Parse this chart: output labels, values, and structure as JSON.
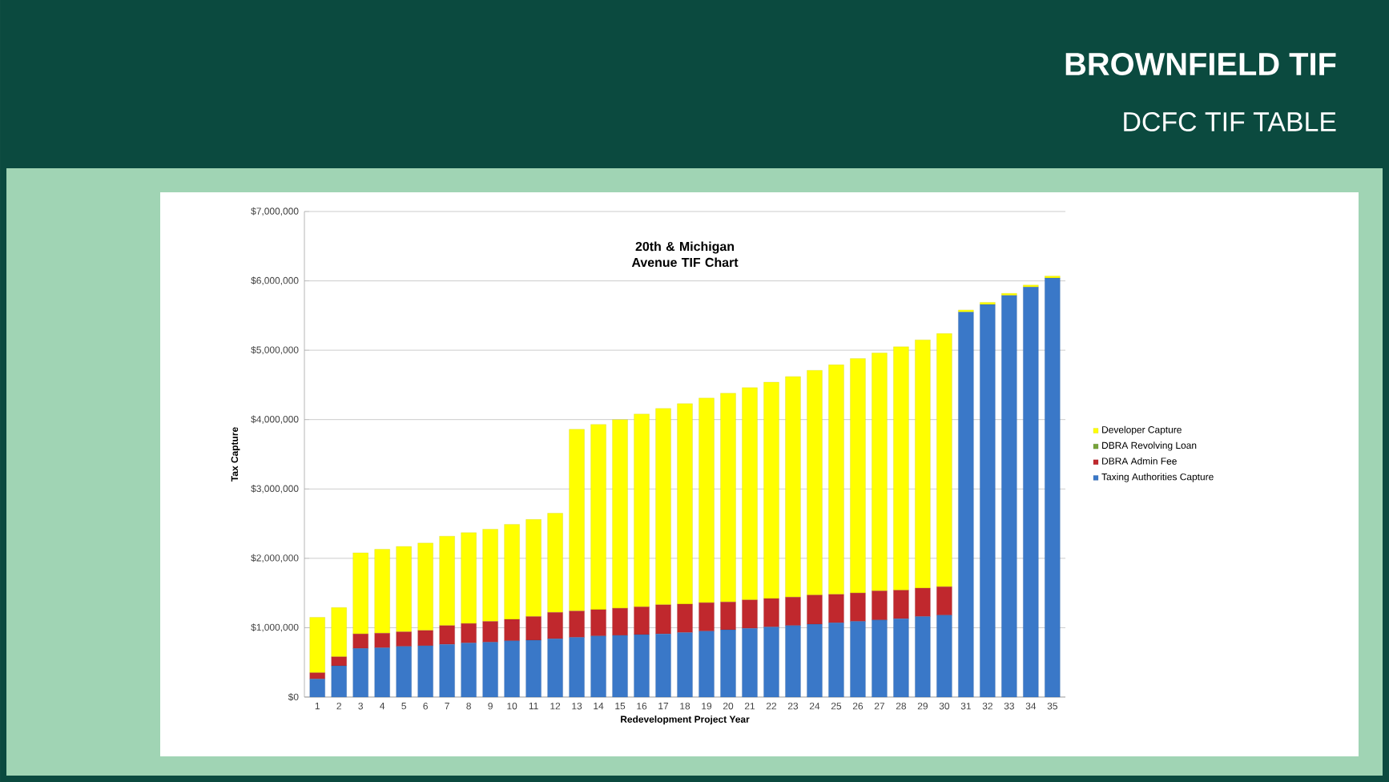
{
  "chart_data": {
    "type": "bar",
    "stacked": true,
    "title": "20th & Michigan Avenue TIF Chart",
    "annotations": [
      "BROWNFIELD TIF",
      "DCFC TIF TABLE"
    ],
    "xlabel": "Redevelopment Project Year",
    "ylabel": "Tax Capture",
    "categories": [
      "1",
      "2",
      "3",
      "4",
      "5",
      "6",
      "7",
      "8",
      "9",
      "10",
      "11",
      "12",
      "13",
      "14",
      "15",
      "16",
      "17",
      "18",
      "19",
      "20",
      "21",
      "22",
      "23",
      "24",
      "25",
      "26",
      "27",
      "28",
      "29",
      "30",
      "31",
      "32",
      "33",
      "34",
      "35"
    ],
    "series": [
      {
        "name": "Taxing Authorities Capture",
        "color": "#3a78c8",
        "values": [
          260000,
          450000,
          700000,
          710000,
          730000,
          740000,
          760000,
          780000,
          790000,
          810000,
          820000,
          840000,
          860000,
          880000,
          890000,
          900000,
          910000,
          930000,
          950000,
          970000,
          990000,
          1010000,
          1030000,
          1050000,
          1070000,
          1090000,
          1110000,
          1130000,
          1160000,
          1180000,
          5550000,
          5660000,
          5790000,
          5910000,
          6040000
        ]
      },
      {
        "name": "DBRA Admin Fee",
        "color": "#c0282d",
        "values": [
          90000,
          130000,
          210000,
          210000,
          210000,
          220000,
          270000,
          280000,
          300000,
          310000,
          340000,
          380000,
          380000,
          380000,
          390000,
          400000,
          420000,
          410000,
          410000,
          400000,
          410000,
          410000,
          410000,
          420000,
          410000,
          410000,
          420000,
          410000,
          410000,
          410000,
          0,
          0,
          0,
          0,
          0
        ]
      },
      {
        "name": "DBRA Revolving Loan",
        "color": "#77a33a",
        "values": [
          0,
          0,
          0,
          0,
          0,
          0,
          0,
          0,
          0,
          0,
          0,
          0,
          0,
          0,
          0,
          0,
          0,
          0,
          0,
          0,
          0,
          0,
          0,
          0,
          0,
          0,
          0,
          0,
          0,
          0,
          0,
          0,
          0,
          0,
          0
        ]
      },
      {
        "name": "Developer Capture",
        "color": "#ffff00",
        "values": [
          800000,
          710000,
          1170000,
          1210000,
          1230000,
          1260000,
          1290000,
          1310000,
          1330000,
          1370000,
          1400000,
          1430000,
          2620000,
          2670000,
          2720000,
          2780000,
          2830000,
          2890000,
          2950000,
          3010000,
          3060000,
          3120000,
          3180000,
          3240000,
          3310000,
          3380000,
          3430000,
          3510000,
          3580000,
          3650000,
          30000,
          30000,
          30000,
          30000,
          30000
        ]
      }
    ],
    "ylim": [
      0,
      7000000
    ],
    "yticks": [
      {
        "value": 0,
        "label": "$0"
      },
      {
        "value": 1000000,
        "label": "$1,000,000"
      },
      {
        "value": 2000000,
        "label": "$2,000,000"
      },
      {
        "value": 3000000,
        "label": "$3,000,000"
      },
      {
        "value": 4000000,
        "label": "$4,000,000"
      },
      {
        "value": 5000000,
        "label": "$5,000,000"
      },
      {
        "value": 6000000,
        "label": "$6,000,000"
      },
      {
        "value": 7000000,
        "label": "$7,000,000"
      }
    ],
    "grid": "y",
    "legend": "right"
  }
}
